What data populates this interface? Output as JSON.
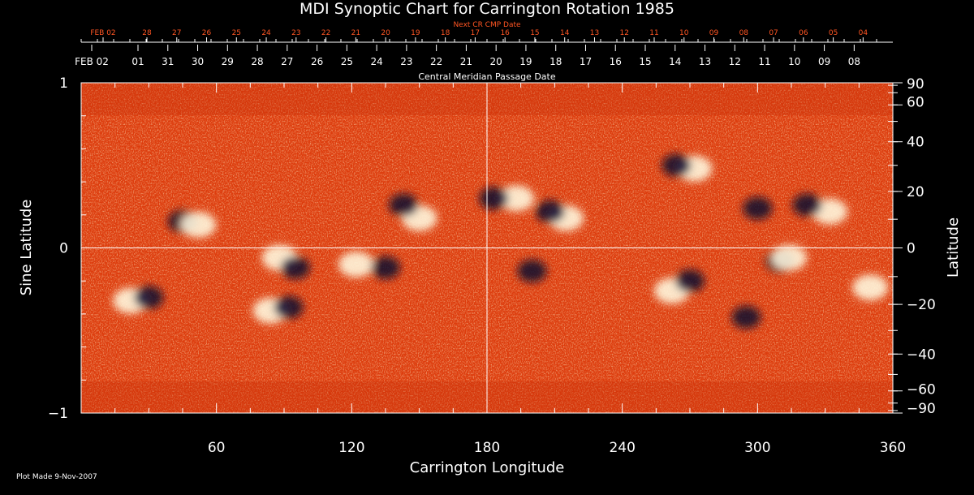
{
  "colors": {
    "background": "#000000",
    "text": "#ffffff",
    "accent": "#ff5522",
    "map_low": "#0b0830",
    "map_mid": "#e13f10",
    "map_high": "#fff6dc"
  },
  "chart_data": {
    "type": "heatmap",
    "title": "MDI Synoptic Chart for Carrington Rotation 1985",
    "xlabel": "Carrington Longitude",
    "ylabel_left": "Sine Latitude",
    "ylabel_right": "Latitude",
    "xlim": [
      0,
      360
    ],
    "ylim": [
      -1,
      1
    ],
    "x_ticks": [
      60,
      120,
      180,
      240,
      300,
      360
    ],
    "left_y_ticks": [
      {
        "value": 1,
        "label": "1"
      },
      {
        "value": 0,
        "label": "0"
      },
      {
        "value": -1,
        "label": "−1"
      }
    ],
    "right_y_ticks": [
      {
        "deg": 90,
        "label": "90"
      },
      {
        "deg": 60,
        "label": "60"
      },
      {
        "deg": 40,
        "label": "40"
      },
      {
        "deg": 20,
        "label": "20"
      },
      {
        "deg": 0,
        "label": "0"
      },
      {
        "deg": -20,
        "label": "−20"
      },
      {
        "deg": -40,
        "label": "−40"
      },
      {
        "deg": -60,
        "label": "−60"
      },
      {
        "deg": -90,
        "label": "−90"
      }
    ],
    "reference_lines": {
      "equator": 0,
      "central_meridian": 180
    },
    "cmp_axis_label": "Central Meridian Passage Date",
    "cmp_dates": [
      "FEB 02",
      "01",
      "31",
      "30",
      "29",
      "28",
      "27",
      "26",
      "25",
      "24",
      "23",
      "22",
      "21",
      "20",
      "19",
      "18",
      "17",
      "16",
      "15",
      "14",
      "13",
      "12",
      "11",
      "10",
      "09",
      "08"
    ],
    "next_cmp_label": "Next CR CMP Date",
    "next_cmp_dates": [
      "FEB 02",
      "28",
      "27",
      "26",
      "25",
      "24",
      "23",
      "22",
      "21",
      "20",
      "19",
      "18",
      "17",
      "16",
      "15",
      "14",
      "13",
      "12",
      "11",
      "10",
      "09",
      "08",
      "07",
      "06",
      "05",
      "04"
    ],
    "footnote": "Plot Made  9-Nov-2007",
    "magnetic_regions": [
      {
        "lon": 22,
        "slat": -0.32,
        "polarity": "positive"
      },
      {
        "lon": 30,
        "slat": -0.3,
        "polarity": "negative"
      },
      {
        "lon": 45,
        "slat": 0.16,
        "polarity": "negative"
      },
      {
        "lon": 52,
        "slat": 0.14,
        "polarity": "positive"
      },
      {
        "lon": 88,
        "slat": -0.06,
        "polarity": "positive"
      },
      {
        "lon": 95,
        "slat": -0.12,
        "polarity": "negative"
      },
      {
        "lon": 84,
        "slat": -0.38,
        "polarity": "positive"
      },
      {
        "lon": 92,
        "slat": -0.36,
        "polarity": "negative"
      },
      {
        "lon": 122,
        "slat": -0.1,
        "polarity": "positive"
      },
      {
        "lon": 135,
        "slat": -0.12,
        "polarity": "negative"
      },
      {
        "lon": 150,
        "slat": 0.18,
        "polarity": "positive"
      },
      {
        "lon": 143,
        "slat": 0.26,
        "polarity": "negative"
      },
      {
        "lon": 193,
        "slat": 0.3,
        "polarity": "positive"
      },
      {
        "lon": 183,
        "slat": 0.3,
        "polarity": "negative"
      },
      {
        "lon": 215,
        "slat": 0.18,
        "polarity": "positive"
      },
      {
        "lon": 208,
        "slat": 0.22,
        "polarity": "negative"
      },
      {
        "lon": 200,
        "slat": -0.14,
        "polarity": "negative"
      },
      {
        "lon": 262,
        "slat": -0.26,
        "polarity": "positive"
      },
      {
        "lon": 270,
        "slat": -0.2,
        "polarity": "negative"
      },
      {
        "lon": 300,
        "slat": 0.24,
        "polarity": "negative"
      },
      {
        "lon": 332,
        "slat": 0.22,
        "polarity": "positive"
      },
      {
        "lon": 322,
        "slat": 0.26,
        "polarity": "negative"
      },
      {
        "lon": 310,
        "slat": -0.08,
        "polarity": "negative"
      },
      {
        "lon": 314,
        "slat": -0.06,
        "polarity": "positive"
      },
      {
        "lon": 272,
        "slat": 0.48,
        "polarity": "positive"
      },
      {
        "lon": 264,
        "slat": 0.5,
        "polarity": "negative"
      },
      {
        "lon": 295,
        "slat": -0.42,
        "polarity": "negative"
      },
      {
        "lon": 350,
        "slat": -0.24,
        "polarity": "positive"
      }
    ]
  }
}
